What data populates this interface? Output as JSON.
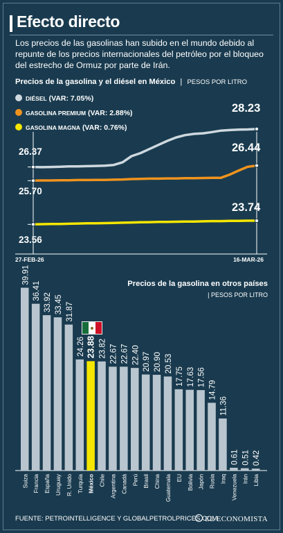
{
  "title": "Efecto directo",
  "subtitle": "Los precios de las gasolinas han subido en el mundo debido al repunte de los precios internacionales del petróleo por el bloqueo del estrecho de Ormuz por parte de Irán.",
  "section1": {
    "title": "Precios de la gasolina y el diésel en México",
    "separator": "|",
    "unit": "PESOS POR LITRO"
  },
  "section2": {
    "title": "Precios de la gasolina en otros países",
    "unit": "| PESOS POR LITRO"
  },
  "source": "FUENTE: PETROINTELLIGENCE Y GLOBALPETROLPRICES.COM",
  "brand": "EL ECONOMISTA",
  "colors": {
    "background": "#1a3b4f",
    "diesel": "#ced8df",
    "premium": "#f0931e",
    "magna": "#f5e600",
    "bars": "#b9c6cf",
    "highlight": "#f5e600",
    "axis": "#ffffff"
  },
  "chart_data": [
    {
      "type": "line",
      "title": "Precios de la gasolina y el diésel en México",
      "ylabel": "PESOS POR LITRO",
      "x_start": "27-FEB-26",
      "x_end": "16-MAR-26",
      "series": [
        {
          "name": "DIÉSEL",
          "change_label": "(VAR: 7.05%)",
          "color": "#ced8df",
          "start": "26.37",
          "end": "28.23",
          "values": [
            26.37,
            26.36,
            26.37,
            26.38,
            26.4,
            26.4,
            26.41,
            26.42,
            26.43,
            26.47,
            26.6,
            26.9,
            27.05,
            27.25,
            27.45,
            27.65,
            27.82,
            27.93,
            27.99,
            28.02,
            28.08,
            28.15,
            28.18,
            28.2,
            28.21,
            28.23
          ]
        },
        {
          "name": "GASOLINA PREMIUM",
          "change_label": "(VAR: 2.88%)",
          "color": "#f0931e",
          "start": "25.70",
          "end": "26.44",
          "values": [
            25.7,
            25.71,
            25.71,
            25.72,
            25.72,
            25.73,
            25.73,
            25.74,
            25.74,
            25.75,
            25.76,
            25.78,
            25.79,
            25.8,
            25.8,
            25.81,
            25.81,
            25.82,
            25.82,
            25.83,
            25.84,
            25.84,
            26.0,
            26.2,
            26.38,
            26.44
          ]
        },
        {
          "name": "GASOLINA MAGNA",
          "change_label": "(VAR: 0.76%)",
          "color": "#f5e600",
          "start": "23.56",
          "end": "23.74",
          "values": [
            23.56,
            23.57,
            23.58,
            23.58,
            23.59,
            23.6,
            23.61,
            23.61,
            23.62,
            23.63,
            23.64,
            23.65,
            23.66,
            23.67,
            23.68,
            23.68,
            23.69,
            23.7,
            23.7,
            23.71,
            23.72,
            23.72,
            23.73,
            23.73,
            23.74,
            23.74
          ]
        }
      ]
    },
    {
      "type": "bar",
      "title": "Precios de la gasolina en otros países",
      "ylabel": "PESOS POR LITRO",
      "highlight": "México",
      "categories": [
        "Suiza",
        "Francia",
        "España",
        "Uruguay",
        "R. Unido",
        "Turquía",
        "México",
        "Chile",
        "Argentina",
        "Canadá",
        "Perú",
        "Brasil",
        "China",
        "Guatemala",
        "EU",
        "Bolivia",
        "Japón",
        "Rusia",
        "Iraq",
        "Venezuela",
        "Irán",
        "Libia"
      ],
      "values": [
        39.91,
        36.41,
        33.92,
        33.45,
        31.87,
        24.26,
        23.88,
        23.82,
        22.67,
        22.67,
        22.4,
        20.97,
        20.9,
        20.53,
        17.75,
        17.63,
        17.56,
        14.79,
        11.36,
        0.61,
        0.51,
        0.42
      ],
      "value_labels": [
        "39.91",
        "36.41",
        "33.92",
        "33.45",
        "31.87",
        "24.26",
        "23.88",
        "23.82",
        "22.67",
        "22.67",
        "22.40",
        "20.97",
        "20.90",
        "20.53",
        "17.75",
        "17.63",
        "17.56",
        "14.79",
        "11.36",
        "0.61",
        "0.51",
        "0.42"
      ]
    }
  ]
}
